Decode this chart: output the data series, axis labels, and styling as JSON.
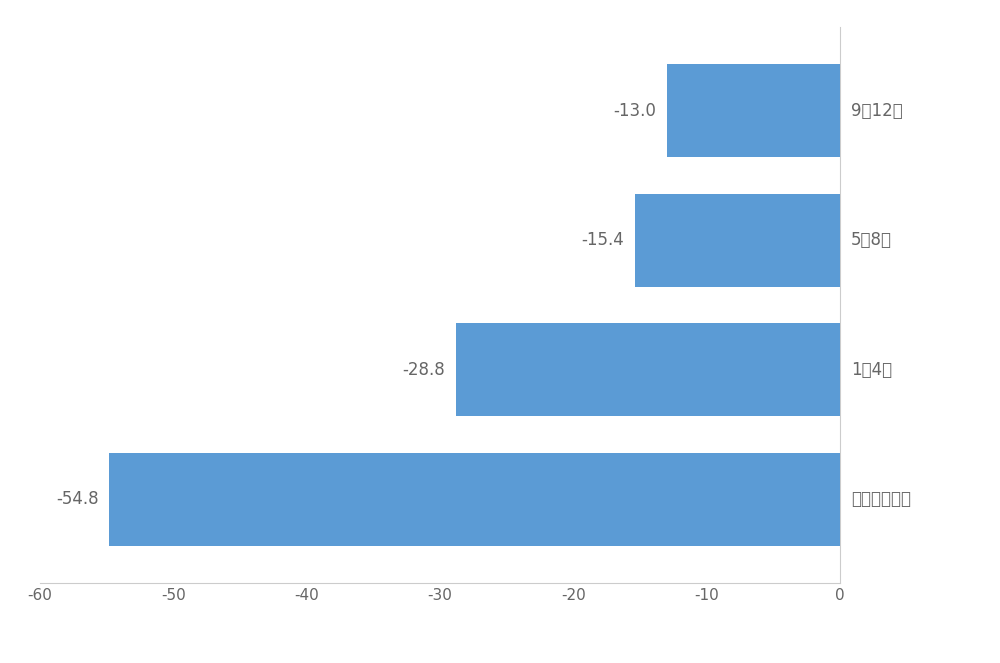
{
  "categories": [
    "全く知らない",
    "1～4個",
    "5～8個",
    "9～12個"
  ],
  "values": [
    -54.8,
    -28.8,
    -15.4,
    -13.0
  ],
  "bar_color": "#5B9BD5",
  "value_labels": [
    "-54.8",
    "-28.8",
    "-15.4",
    "-13.0"
  ],
  "y_labels": [
    "全く知らない",
    "1～4個",
    "5～8個",
    "9～12個"
  ],
  "xlim": [
    -60,
    0
  ],
  "xticks": [
    -60,
    -50,
    -40,
    -30,
    -20,
    -10,
    0
  ],
  "background_color": "#ffffff",
  "bar_height": 0.72,
  "value_fontsize": 12,
  "ylabel_fontsize": 12,
  "xlabel_fontsize": 11,
  "spine_color": "#cccccc",
  "text_color": "#666666"
}
